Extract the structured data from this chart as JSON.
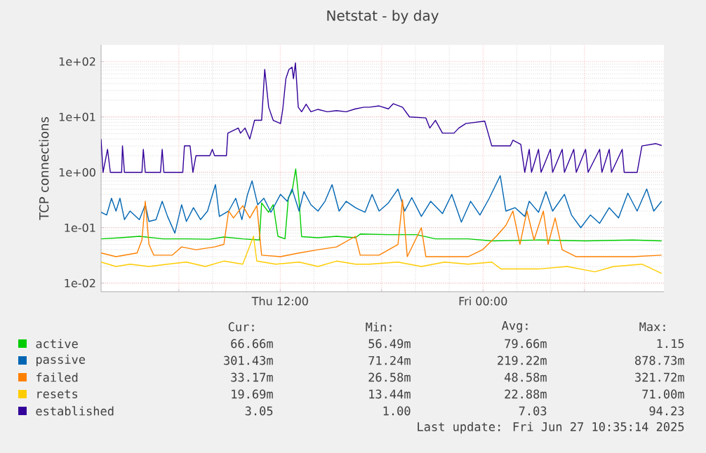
{
  "chart_data": {
    "type": "line",
    "title": "Netstat - by day",
    "ylabel": "TCP connections",
    "log": "y",
    "grid": true,
    "legend": "bottom",
    "xlim": [
      "2025-06-26T01:24",
      "2025-06-27T10:42"
    ],
    "ylim": [
      0.007,
      200
    ],
    "xticks": [
      {
        "value": "2025-06-26T06:00",
        "label": null
      },
      {
        "value": "2025-06-26T12:00",
        "label": "Thu 12:00"
      },
      {
        "value": "2025-06-26T18:00",
        "label": null
      },
      {
        "value": "2025-06-27T00:00",
        "label": "Fri 00:00"
      },
      {
        "value": "2025-06-27T06:00",
        "label": null
      }
    ],
    "yticks": [
      {
        "value": 0.01,
        "label": "1e-02"
      },
      {
        "value": 0.1,
        "label": "1e-01"
      },
      {
        "value": 1,
        "label": "1e+00"
      },
      {
        "value": 10,
        "label": "1e+01"
      },
      {
        "value": 100,
        "label": "1e+02"
      }
    ],
    "series": [
      {
        "name": "active",
        "color": "#00cc00",
        "x": [
          "2025-06-26T01:24",
          "2025-06-26T02:34",
          "2025-06-26T03:40",
          "2025-06-26T05:04",
          "2025-06-26T06:27",
          "2025-06-26T07:50",
          "2025-06-26T08:40",
          "2025-06-26T09:47",
          "2025-06-26T10:46",
          "2025-06-26T10:54",
          "2025-06-26T11:19",
          "2025-06-26T11:35",
          "2025-06-26T11:52",
          "2025-06-26T12:17",
          "2025-06-26T12:29",
          "2025-06-26T12:42",
          "2025-06-26T12:55",
          "2025-06-26T13:07",
          "2025-06-26T13:16",
          "2025-06-26T14:14",
          "2025-06-26T15:20",
          "2025-06-26T16:27",
          "2025-06-26T16:44",
          "2025-06-26T18:24",
          "2025-06-26T20:04",
          "2025-06-26T21:11",
          "2025-06-26T23:07",
          "2025-06-27T00:31",
          "2025-06-27T03:17",
          "2025-06-27T06:04",
          "2025-06-27T08:51",
          "2025-06-27T10:34"
        ],
        "values": [
          0.063,
          0.066,
          0.07,
          0.063,
          0.063,
          0.062,
          0.068,
          0.063,
          0.06,
          0.28,
          0.19,
          0.26,
          0.07,
          0.063,
          0.35,
          0.45,
          1.15,
          0.3,
          0.069,
          0.066,
          0.07,
          0.066,
          0.077,
          0.075,
          0.075,
          0.063,
          0.063,
          0.058,
          0.06,
          0.058,
          0.06,
          0.058
        ]
      },
      {
        "name": "passive",
        "color": "#0066b3",
        "x": [
          "2025-06-26T01:24",
          "2025-06-26T01:44",
          "2025-06-26T02:01",
          "2025-06-26T02:17",
          "2025-06-26T02:31",
          "2025-06-26T02:47",
          "2025-06-26T03:07",
          "2025-06-26T03:40",
          "2025-06-26T04:01",
          "2025-06-26T04:14",
          "2025-06-26T04:39",
          "2025-06-26T05:01",
          "2025-06-26T05:20",
          "2025-06-26T05:46",
          "2025-06-26T06:10",
          "2025-06-26T06:27",
          "2025-06-26T06:52",
          "2025-06-26T07:17",
          "2025-06-26T07:42",
          "2025-06-26T08:10",
          "2025-06-26T08:24",
          "2025-06-26T08:57",
          "2025-06-26T09:22",
          "2025-06-26T09:44",
          "2025-06-26T10:04",
          "2025-06-26T10:20",
          "2025-06-26T10:40",
          "2025-06-26T11:02",
          "2025-06-26T11:27",
          "2025-06-26T12:01",
          "2025-06-26T12:25",
          "2025-06-26T12:42",
          "2025-06-26T13:07",
          "2025-06-26T13:24",
          "2025-06-26T13:49",
          "2025-06-26T14:14",
          "2025-06-26T14:39",
          "2025-06-26T15:04",
          "2025-06-26T15:29",
          "2025-06-26T15:54",
          "2025-06-26T16:27",
          "2025-06-26T17:01",
          "2025-06-26T17:26",
          "2025-06-26T17:51",
          "2025-06-26T18:24",
          "2025-06-26T18:58",
          "2025-06-26T19:22",
          "2025-06-26T19:47",
          "2025-06-26T20:21",
          "2025-06-26T20:54",
          "2025-06-26T21:36",
          "2025-06-26T22:09",
          "2025-06-26T22:43",
          "2025-06-26T23:16",
          "2025-06-26T23:49",
          "2025-06-27T00:22",
          "2025-06-27T01:01",
          "2025-06-27T01:21",
          "2025-06-27T01:54",
          "2025-06-27T02:28",
          "2025-06-27T02:44",
          "2025-06-27T03:17",
          "2025-06-27T03:43",
          "2025-06-27T04:07",
          "2025-06-27T04:49",
          "2025-06-27T05:14",
          "2025-06-27T05:47",
          "2025-06-27T06:21",
          "2025-06-27T06:54",
          "2025-06-27T07:28",
          "2025-06-27T08:01",
          "2025-06-27T08:34",
          "2025-06-27T09:07",
          "2025-06-27T09:41",
          "2025-06-27T10:06",
          "2025-06-27T10:34"
        ],
        "values": [
          0.19,
          0.17,
          0.34,
          0.2,
          0.34,
          0.14,
          0.2,
          0.14,
          0.26,
          0.13,
          0.14,
          0.3,
          0.16,
          0.08,
          0.26,
          0.13,
          0.23,
          0.14,
          0.2,
          0.6,
          0.16,
          0.2,
          0.34,
          0.14,
          0.4,
          0.7,
          0.26,
          0.34,
          0.19,
          0.4,
          0.3,
          0.5,
          0.2,
          0.45,
          0.26,
          0.2,
          0.3,
          0.6,
          0.2,
          0.3,
          0.23,
          0.19,
          0.4,
          0.2,
          0.28,
          0.5,
          0.2,
          0.35,
          0.16,
          0.3,
          0.18,
          0.4,
          0.126,
          0.3,
          0.17,
          0.34,
          0.87,
          0.2,
          0.23,
          0.16,
          0.3,
          0.19,
          0.45,
          0.2,
          0.4,
          0.17,
          0.1,
          0.17,
          0.12,
          0.23,
          0.15,
          0.42,
          0.2,
          0.5,
          0.2,
          0.3
        ]
      },
      {
        "name": "failed",
        "color": "#ff8000",
        "x": [
          "2025-06-26T01:24",
          "2025-06-26T02:17",
          "2025-06-26T03:32",
          "2025-06-26T03:49",
          "2025-06-26T04:01",
          "2025-06-26T04:14",
          "2025-06-26T04:31",
          "2025-06-26T05:37",
          "2025-06-26T06:10",
          "2025-06-26T07:01",
          "2025-06-26T08:07",
          "2025-06-26T08:40",
          "2025-06-26T08:57",
          "2025-06-26T09:14",
          "2025-06-26T09:47",
          "2025-06-26T10:12",
          "2025-06-26T10:37",
          "2025-06-26T10:54",
          "2025-06-26T12:01",
          "2025-06-26T13:07",
          "2025-06-26T14:14",
          "2025-06-26T15:20",
          "2025-06-26T16:27",
          "2025-06-26T16:44",
          "2025-06-26T17:51",
          "2025-06-26T18:58",
          "2025-06-26T19:14",
          "2025-06-26T19:31",
          "2025-06-26T20:21",
          "2025-06-26T20:37",
          "2025-06-26T21:44",
          "2025-06-26T23:07",
          "2025-06-26T23:58",
          "2025-06-27T00:47",
          "2025-06-27T01:21",
          "2025-06-27T01:46",
          "2025-06-27T02:11",
          "2025-06-27T02:36",
          "2025-06-27T03:01",
          "2025-06-27T03:34",
          "2025-06-27T03:51",
          "2025-06-27T04:16",
          "2025-06-27T04:41",
          "2025-06-27T05:31",
          "2025-06-27T06:37",
          "2025-06-27T07:44",
          "2025-06-27T08:51",
          "2025-06-27T10:34"
        ],
        "values": [
          0.035,
          0.03,
          0.035,
          0.06,
          0.3,
          0.05,
          0.032,
          0.032,
          0.045,
          0.04,
          0.045,
          0.05,
          0.2,
          0.15,
          0.25,
          0.15,
          0.25,
          0.032,
          0.03,
          0.035,
          0.04,
          0.045,
          0.07,
          0.032,
          0.032,
          0.05,
          0.32,
          0.03,
          0.1,
          0.03,
          0.03,
          0.03,
          0.04,
          0.07,
          0.11,
          0.2,
          0.05,
          0.2,
          0.06,
          0.2,
          0.05,
          0.15,
          0.04,
          0.03,
          0.03,
          0.03,
          0.03,
          0.032
        ]
      },
      {
        "name": "resets",
        "color": "#ffcc00",
        "x": [
          "2025-06-26T01:24",
          "2025-06-26T02:17",
          "2025-06-26T03:07",
          "2025-06-26T04:14",
          "2025-06-26T05:20",
          "2025-06-26T06:27",
          "2025-06-26T07:34",
          "2025-06-26T08:40",
          "2025-06-26T09:47",
          "2025-06-26T10:25",
          "2025-06-26T10:37",
          "2025-06-26T11:44",
          "2025-06-26T13:07",
          "2025-06-26T14:14",
          "2025-06-26T15:20",
          "2025-06-26T16:27",
          "2025-06-26T17:17",
          "2025-06-26T18:58",
          "2025-06-26T20:21",
          "2025-06-26T21:44",
          "2025-06-26T23:07",
          "2025-06-27T00:31",
          "2025-06-27T01:04",
          "2025-06-27T03:17",
          "2025-06-27T04:58",
          "2025-06-27T06:37",
          "2025-06-27T07:44",
          "2025-06-27T09:24",
          "2025-06-27T10:34"
        ],
        "values": [
          0.024,
          0.02,
          0.022,
          0.02,
          0.022,
          0.024,
          0.02,
          0.025,
          0.022,
          0.07,
          0.025,
          0.022,
          0.024,
          0.02,
          0.025,
          0.022,
          0.022,
          0.024,
          0.02,
          0.024,
          0.022,
          0.024,
          0.018,
          0.018,
          0.02,
          0.016,
          0.02,
          0.022,
          0.015
        ]
      },
      {
        "name": "established",
        "color": "#330099",
        "x": [
          "2025-06-26T01:24",
          "2025-06-26T01:31",
          "2025-06-26T01:47",
          "2025-06-26T01:57",
          "2025-06-26T02:37",
          "2025-06-26T02:40",
          "2025-06-26T02:47",
          "2025-06-26T03:49",
          "2025-06-26T03:54",
          "2025-06-26T04:01",
          "2025-06-26T04:55",
          "2025-06-26T05:01",
          "2025-06-26T05:07",
          "2025-06-26T06:14",
          "2025-06-26T06:20",
          "2025-06-26T06:40",
          "2025-06-26T06:50",
          "2025-06-26T07:01",
          "2025-06-26T07:50",
          "2025-06-26T07:59",
          "2025-06-26T08:07",
          "2025-06-26T08:49",
          "2025-06-26T08:54",
          "2025-06-26T09:31",
          "2025-06-26T09:39",
          "2025-06-26T09:55",
          "2025-06-26T10:12",
          "2025-06-26T10:29",
          "2025-06-26T10:54",
          "2025-06-26T11:05",
          "2025-06-26T11:19",
          "2025-06-26T11:35",
          "2025-06-26T12:01",
          "2025-06-26T12:09",
          "2025-06-26T12:20",
          "2025-06-26T12:31",
          "2025-06-26T12:42",
          "2025-06-26T12:47",
          "2025-06-26T12:54",
          "2025-06-26T13:04",
          "2025-06-26T13:16",
          "2025-06-26T13:32",
          "2025-06-26T13:49",
          "2025-06-26T14:14",
          "2025-06-26T14:47",
          "2025-06-26T15:20",
          "2025-06-26T15:54",
          "2025-06-26T16:27",
          "2025-06-26T16:57",
          "2025-06-26T17:17",
          "2025-06-26T17:51",
          "2025-06-26T18:24",
          "2025-06-26T18:41",
          "2025-06-26T19:14",
          "2025-06-26T19:39",
          "2025-06-26T20:37",
          "2025-06-26T20:51",
          "2025-06-26T21:11",
          "2025-06-26T21:36",
          "2025-06-26T22:17",
          "2025-06-26T22:34",
          "2025-06-26T22:59",
          "2025-06-27T00:06",
          "2025-06-27T00:31",
          "2025-06-27T01:37",
          "2025-06-27T01:46",
          "2025-06-27T02:14",
          "2025-06-27T02:28",
          "2025-06-27T02:44",
          "2025-06-27T02:52",
          "2025-06-27T03:17",
          "2025-06-27T03:26",
          "2025-06-27T03:59",
          "2025-06-27T04:07",
          "2025-06-27T04:41",
          "2025-06-27T04:49",
          "2025-06-27T05:22",
          "2025-06-27T05:31",
          "2025-06-27T06:04",
          "2025-06-27T06:13",
          "2025-06-27T06:54",
          "2025-06-27T07:02",
          "2025-06-27T07:28",
          "2025-06-27T07:36",
          "2025-06-27T08:14",
          "2025-06-27T08:21",
          "2025-06-27T09:07",
          "2025-06-27T09:24",
          "2025-06-27T10:14",
          "2025-06-27T10:34"
        ],
        "values": [
          4.0,
          1.0,
          2.6,
          1.0,
          1.0,
          3.0,
          1.0,
          1.0,
          2.6,
          1.0,
          1.0,
          2.6,
          1.0,
          1.0,
          3.0,
          3.0,
          1.0,
          2.0,
          2.0,
          2.6,
          2.0,
          2.0,
          5.1,
          6.3,
          5.1,
          6.3,
          4.0,
          8.7,
          8.7,
          72,
          15,
          8.7,
          7.6,
          13.7,
          49,
          72,
          79,
          49,
          94.23,
          15,
          12.4,
          17,
          12.4,
          13.7,
          12.4,
          13,
          12.4,
          14,
          15,
          15,
          15.8,
          14,
          17.3,
          15,
          10,
          9.6,
          6.3,
          8.7,
          5.1,
          5.1,
          6.3,
          7.6,
          8.4,
          3.0,
          3.0,
          3.8,
          3.2,
          1.0,
          2.6,
          1.0,
          2.6,
          1.0,
          2.6,
          1.0,
          2.6,
          1.0,
          2.6,
          1.0,
          2.6,
          1.0,
          2.6,
          1.0,
          2.6,
          1.0,
          2.6,
          1.0,
          1.0,
          3.0,
          3.3,
          3.05
        ]
      }
    ],
    "annotations": [
      "Cur:",
      "Min:",
      "Avg:",
      "Max:",
      "66.66m",
      "56.49m",
      "79.66m",
      "1.15",
      "301.43m",
      "71.24m",
      "219.22m",
      "878.73m",
      "33.17m",
      "26.58m",
      "48.58m",
      "321.72m",
      "19.69m",
      "13.44m",
      "22.88m",
      "71.00m",
      "3.05",
      "1.00",
      "7.03",
      "94.23",
      "Last update: Fri Jun 27 10:35:14 2025"
    ]
  }
}
